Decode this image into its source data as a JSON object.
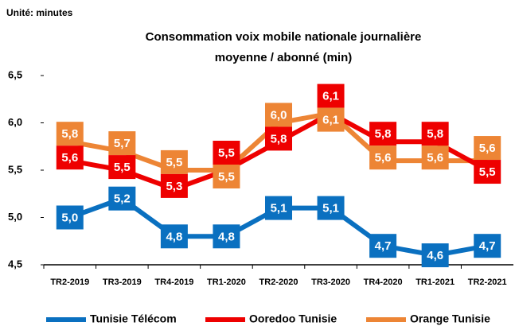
{
  "chart_data": {
    "type": "line",
    "subtitle": "Unité: minutes",
    "title": [
      "Consommation voix mobile  nationale journalière",
      "moyenne / abonné (min)"
    ],
    "categories": [
      "TR2-2019",
      "TR3-2019",
      "TR4-2019",
      "TR1-2020",
      "TR2-2020",
      "TR3-2020",
      "TR4-2020",
      "TR1-2021",
      "TR2-2021"
    ],
    "series": [
      {
        "name": "Tunisie Télécom",
        "color": "#0a70c0",
        "values": [
          5.0,
          5.2,
          4.8,
          4.8,
          5.1,
          5.1,
          4.7,
          4.6,
          4.7
        ],
        "value_labels": [
          "5,0",
          "5,2",
          "4,8",
          "4,8",
          "5,1",
          "5,1",
          "4,7",
          "4,6",
          "4,7"
        ]
      },
      {
        "name": "Ooredoo Tunisie",
        "color": "#ee0000",
        "values": [
          5.6,
          5.5,
          5.3,
          5.5,
          5.8,
          6.1,
          5.8,
          5.8,
          5.5
        ],
        "value_labels": [
          "5,6",
          "5,5",
          "5,3",
          "5,5",
          "5,8",
          "6,1",
          "5,8",
          "5,8",
          "5,5"
        ]
      },
      {
        "name": "Orange Tunisie",
        "color": "#ed8535",
        "values": [
          5.8,
          5.7,
          5.5,
          5.5,
          6.0,
          6.1,
          5.6,
          5.6,
          5.6
        ],
        "value_labels": [
          "5,8",
          "5,7",
          "5,5",
          "5,5",
          "6,0",
          "6,1",
          "5,6",
          "5,6",
          "5,6"
        ]
      }
    ],
    "ylim": [
      4.5,
      6.5
    ],
    "yticks": [
      {
        "value": 4.5,
        "label": "4,5"
      },
      {
        "value": 5.0,
        "label": "5,0"
      },
      {
        "value": 5.5,
        "label": "5,5"
      },
      {
        "value": 6.0,
        "label": "6,0"
      },
      {
        "value": 6.5,
        "label": "6,5"
      }
    ],
    "grid": false
  }
}
